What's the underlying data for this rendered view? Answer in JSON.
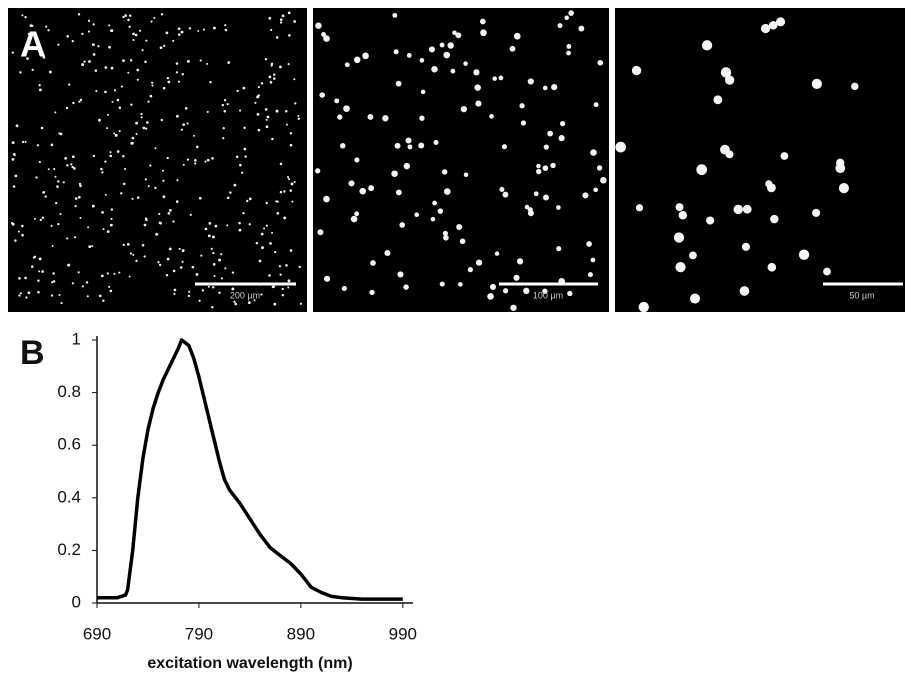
{
  "panels": {
    "a_label": "A",
    "b_label": "B",
    "scale_bars": [
      "200 µm",
      "100 µm",
      "50 µm"
    ]
  },
  "chart_data": {
    "type": "line",
    "xlabel": "excitation wavelength (nm)",
    "x": [
      690,
      700,
      710,
      718,
      720,
      725,
      730,
      735,
      740,
      745,
      750,
      755,
      760,
      765,
      770,
      773,
      780,
      785,
      790,
      795,
      800,
      805,
      810,
      815,
      820,
      830,
      840,
      850,
      860,
      870,
      880,
      890,
      900,
      910,
      920,
      930,
      950,
      970,
      990
    ],
    "values": [
      0.02,
      0.02,
      0.02,
      0.03,
      0.05,
      0.2,
      0.4,
      0.55,
      0.66,
      0.74,
      0.8,
      0.85,
      0.89,
      0.93,
      0.97,
      1.0,
      0.98,
      0.93,
      0.86,
      0.78,
      0.7,
      0.62,
      0.54,
      0.47,
      0.43,
      0.38,
      0.32,
      0.26,
      0.21,
      0.18,
      0.15,
      0.11,
      0.06,
      0.04,
      0.025,
      0.02,
      0.015,
      0.015,
      0.015
    ],
    "color": "#000000",
    "xlim": [
      690,
      1000
    ],
    "ylim": [
      0,
      1
    ],
    "xticks": [
      690,
      790,
      890,
      990
    ],
    "yticks": [
      0,
      0.2,
      0.4,
      0.6,
      0.8,
      1
    ]
  }
}
